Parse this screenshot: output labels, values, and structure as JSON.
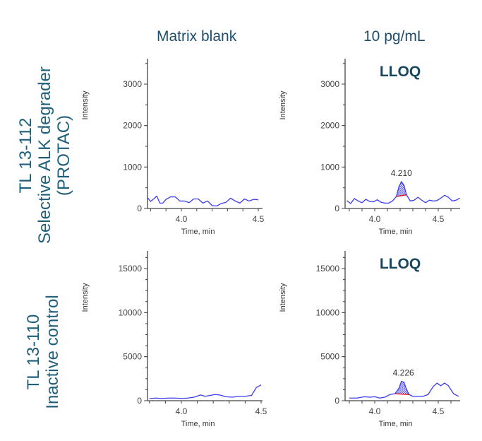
{
  "columns": {
    "left": "Matrix blank",
    "right": "10 pg/mL"
  },
  "rows": [
    {
      "label_lines": [
        "TL 13-112",
        "Selective ALK degrader",
        "(PROTAC)"
      ]
    },
    {
      "label_lines": [
        "TL 13-110",
        "Inactive control"
      ]
    }
  ],
  "colors": {
    "trace": "#3b3bf0",
    "baseline": "#e02020",
    "axis": "#444444",
    "text": "#1f4e6b"
  },
  "chart_data": [
    {
      "type": "line",
      "title": "TL 13-112 — Matrix blank",
      "xlabel": "Time, min",
      "ylabel": "Intensity",
      "xlim": [
        3.75,
        4.75
      ],
      "ylim": [
        0,
        3600
      ],
      "xticks": [
        "4.0",
        "4.5"
      ],
      "yticks": [
        "0",
        "1000",
        "2000",
        "3000"
      ],
      "x": [
        3.75,
        3.78,
        3.8,
        3.82,
        3.84,
        3.86,
        3.88,
        3.9,
        3.93,
        3.96,
        3.99,
        4.02,
        4.05,
        4.08,
        4.11,
        4.14,
        4.17,
        4.2,
        4.23,
        4.26,
        4.29,
        4.32,
        4.35,
        4.38,
        4.41,
        4.44,
        4.47,
        4.5,
        4.53,
        4.56,
        4.58,
        4.61,
        4.64,
        4.67,
        4.7,
        4.73,
        4.75
      ],
      "values": [
        150,
        260,
        170,
        230,
        300,
        130,
        130,
        220,
        280,
        280,
        180,
        180,
        140,
        230,
        230,
        130,
        180,
        70,
        60,
        120,
        150,
        250,
        180,
        130,
        230,
        180,
        220,
        210,
        390,
        300,
        250,
        140,
        110,
        160,
        240,
        180,
        200
      ],
      "annotations": []
    },
    {
      "type": "line",
      "title": "TL 13-112 — 10 pg/mL",
      "xlabel": "Time, min",
      "ylabel": "Intensity",
      "xlim": [
        3.75,
        4.75
      ],
      "ylim": [
        0,
        3600
      ],
      "xticks": [
        "4.0",
        "4.5"
      ],
      "yticks": [
        "0",
        "1000",
        "2000",
        "3000"
      ],
      "x": [
        3.75,
        3.78,
        3.81,
        3.84,
        3.87,
        3.9,
        3.93,
        3.96,
        3.99,
        4.02,
        4.05,
        4.08,
        4.11,
        4.14,
        4.17,
        4.19,
        4.21,
        4.23,
        4.25,
        4.28,
        4.31,
        4.34,
        4.37,
        4.4,
        4.43,
        4.46,
        4.49,
        4.52,
        4.55,
        4.58,
        4.61,
        4.64,
        4.67,
        4.7,
        4.73,
        4.75
      ],
      "values": [
        200,
        190,
        120,
        240,
        180,
        140,
        220,
        170,
        160,
        210,
        150,
        130,
        130,
        180,
        290,
        520,
        650,
        560,
        330,
        180,
        200,
        270,
        200,
        140,
        200,
        180,
        190,
        250,
        320,
        270,
        180,
        200,
        250,
        290,
        310,
        300
      ],
      "annotations": [
        {
          "text": "LLOQ"
        },
        {
          "text": "4.210",
          "x": 4.21,
          "peak_integrated": true
        }
      ]
    },
    {
      "type": "line",
      "title": "TL 13-110 — Matrix blank",
      "xlabel": "Time, min",
      "ylabel": "Intensity",
      "xlim": [
        3.73,
        4.72
      ],
      "ylim": [
        0,
        17000
      ],
      "xticks": [
        "4.0",
        "4.5"
      ],
      "yticks": [
        "0",
        "5000",
        "10000",
        "15000"
      ],
      "x": [
        3.73,
        3.76,
        3.8,
        3.84,
        3.88,
        3.92,
        3.96,
        4.0,
        4.04,
        4.08,
        4.12,
        4.15,
        4.18,
        4.21,
        4.24,
        4.28,
        4.32,
        4.36,
        4.4,
        4.44,
        4.47,
        4.5,
        4.53,
        4.56,
        4.59,
        4.62,
        4.66,
        4.7,
        4.72
      ],
      "values": [
        200,
        300,
        250,
        300,
        250,
        300,
        300,
        250,
        300,
        400,
        650,
        500,
        600,
        700,
        650,
        450,
        400,
        500,
        500,
        600,
        1500,
        1800,
        1400,
        1500,
        1100,
        600,
        500,
        500,
        500
      ],
      "annotations": []
    },
    {
      "type": "line",
      "title": "TL 13-110 — 10 pg/mL",
      "xlabel": "Time, min",
      "ylabel": "Intensity",
      "xlim": [
        3.73,
        4.72
      ],
      "ylim": [
        0,
        17000
      ],
      "xticks": [
        "4.0",
        "4.5"
      ],
      "yticks": [
        "0",
        "5000",
        "10000",
        "15000"
      ],
      "x": [
        3.73,
        3.8,
        3.86,
        3.92,
        3.96,
        4.0,
        4.04,
        4.08,
        4.12,
        4.16,
        4.19,
        4.21,
        4.23,
        4.25,
        4.27,
        4.3,
        4.34,
        4.38,
        4.42,
        4.46,
        4.49,
        4.52,
        4.55,
        4.58,
        4.62,
        4.66,
        4.7,
        4.72
      ],
      "values": [
        300,
        300,
        300,
        450,
        400,
        450,
        300,
        400,
        700,
        800,
        1400,
        2200,
        2100,
        1300,
        700,
        500,
        500,
        500,
        700,
        1600,
        2000,
        1700,
        2000,
        1700,
        800,
        500,
        500,
        500
      ],
      "annotations": [
        {
          "text": "LLOQ"
        },
        {
          "text": "4.226",
          "x": 4.226,
          "peak_integrated": true
        }
      ]
    }
  ]
}
